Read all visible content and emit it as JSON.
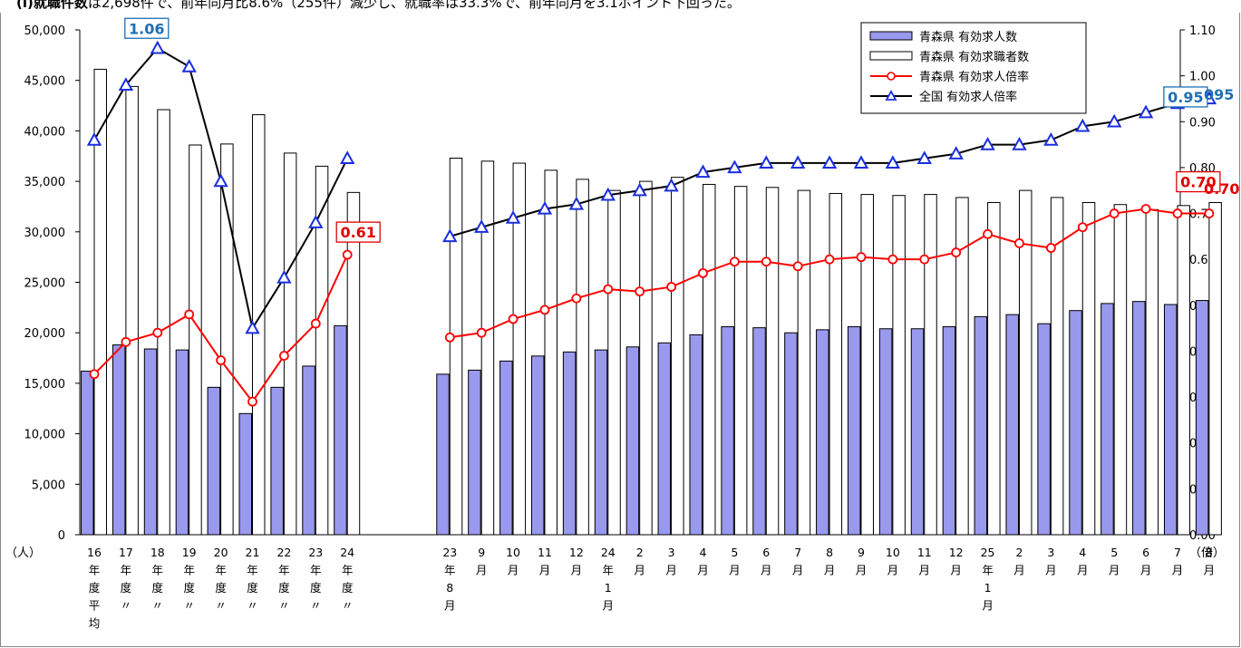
{
  "header": {
    "bold_text": "(i)就職件数",
    "rest_text": "は2,698件で、前年同月比8.6%（255件）減少し、就職率は33.3%で、前年同月を3.1ポイント下回った。"
  },
  "chart_data": {
    "type": "bar+line",
    "y_left": {
      "min": 0,
      "max": 50000,
      "step": 5000,
      "unit_label": "（人）"
    },
    "y_right": {
      "min": 0,
      "max": 1.1,
      "step": 0.1,
      "unit_label": "（倍）"
    },
    "categories": [
      [
        "16",
        "年",
        "度",
        "平",
        "均"
      ],
      [
        "17",
        "年",
        "度",
        "〃"
      ],
      [
        "18",
        "年",
        "度",
        "〃"
      ],
      [
        "19",
        "年",
        "度",
        "〃"
      ],
      [
        "20",
        "年",
        "度",
        "〃"
      ],
      [
        "21",
        "年",
        "度",
        "〃"
      ],
      [
        "22",
        "年",
        "度",
        "〃"
      ],
      [
        "23",
        "年",
        "度",
        "〃"
      ],
      [
        "24",
        "年",
        "度",
        "〃"
      ],
      [
        "23",
        "年",
        "8",
        "月"
      ],
      [
        "9",
        "月"
      ],
      [
        "10",
        "月"
      ],
      [
        "11",
        "月"
      ],
      [
        "12",
        "月"
      ],
      [
        "24",
        "年",
        "1",
        "月"
      ],
      [
        "2",
        "月"
      ],
      [
        "3",
        "月"
      ],
      [
        "4",
        "月"
      ],
      [
        "5",
        "月"
      ],
      [
        "6",
        "月"
      ],
      [
        "7",
        "月"
      ],
      [
        "8",
        "月"
      ],
      [
        "9",
        "月"
      ],
      [
        "10",
        "月"
      ],
      [
        "11",
        "月"
      ],
      [
        "12",
        "月"
      ],
      [
        "25",
        "年",
        "1",
        "月"
      ],
      [
        "2",
        "月"
      ],
      [
        "3",
        "月"
      ],
      [
        "4",
        "月"
      ],
      [
        "5",
        "月"
      ],
      [
        "6",
        "月"
      ],
      [
        "7",
        "月"
      ],
      [
        "8",
        "月"
      ]
    ],
    "group_sizes": [
      9,
      25
    ],
    "series": [
      {
        "name": "青森県 有効求人数",
        "type": "bar",
        "axis": "left",
        "color": "#9999ee",
        "values": [
          16200,
          18800,
          18400,
          18300,
          14600,
          12000,
          14600,
          16700,
          20700,
          15900,
          16300,
          17200,
          17700,
          18100,
          18300,
          18600,
          19000,
          19800,
          20600,
          20500,
          20000,
          20300,
          20600,
          20400,
          20400,
          20600,
          21600,
          21800,
          20900,
          22200,
          22900,
          23100,
          22800,
          23200
        ]
      },
      {
        "name": "青森県 有効求職者数",
        "type": "bar",
        "axis": "left",
        "color": "#ffffff",
        "values": [
          46100,
          44400,
          42100,
          38600,
          38700,
          41600,
          37800,
          36500,
          33900,
          37300,
          37000,
          36800,
          36100,
          35200,
          34100,
          35000,
          35400,
          34700,
          34500,
          34400,
          34100,
          33800,
          33700,
          33600,
          33700,
          33400,
          32900,
          34100,
          33400,
          32900,
          32700,
          32200,
          32600,
          32900
        ]
      },
      {
        "name": "青森県 有効求人倍率",
        "type": "line",
        "axis": "right",
        "color": "#ff0000",
        "marker": "circle",
        "values": [
          0.35,
          0.42,
          0.44,
          0.48,
          0.38,
          0.29,
          0.39,
          0.46,
          0.61,
          0.43,
          0.44,
          0.47,
          0.49,
          0.515,
          0.535,
          0.53,
          0.54,
          0.57,
          0.595,
          0.595,
          0.585,
          0.6,
          0.605,
          0.6,
          0.6,
          0.615,
          0.655,
          0.635,
          0.625,
          0.67,
          0.7,
          0.71,
          0.7,
          0.7
        ]
      },
      {
        "name": "全国 有効求人倍率",
        "type": "line",
        "axis": "right",
        "color": "#000000",
        "marker": "triangle",
        "values": [
          0.86,
          0.98,
          1.06,
          1.02,
          0.77,
          0.45,
          0.56,
          0.68,
          0.82,
          0.65,
          0.67,
          0.69,
          0.71,
          0.72,
          0.74,
          0.75,
          0.76,
          0.79,
          0.8,
          0.81,
          0.81,
          0.81,
          0.81,
          0.81,
          0.82,
          0.83,
          0.85,
          0.85,
          0.86,
          0.89,
          0.9,
          0.92,
          0.94,
          0.95
        ]
      }
    ],
    "annotations": [
      {
        "text": "1.06",
        "series": 3,
        "index": 2,
        "color": "#1f6fb5",
        "boxed": true
      },
      {
        "text": "0.61",
        "series": 2,
        "index": 8,
        "color": "#e00000",
        "boxed": true
      },
      {
        "text": "0.95",
        "series": 3,
        "index": 33,
        "color": "#1f6fb5",
        "boxed": true
      },
      {
        "text": "0.70",
        "series": 2,
        "index": 33,
        "color": "#e00000",
        "boxed": true
      }
    ],
    "side_labels": [
      {
        "text": "095",
        "color": "#1f6fb5"
      },
      {
        "text": "0.70",
        "color": "#e00000"
      }
    ],
    "legend": {
      "position": "top-right"
    },
    "grid": false
  }
}
